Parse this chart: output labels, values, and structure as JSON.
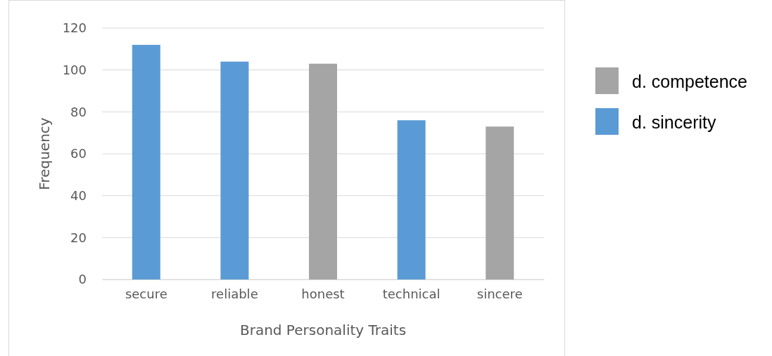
{
  "chart_data": {
    "type": "bar",
    "xlabel": "Brand Personality Traits",
    "ylabel": "Frequency",
    "categories": [
      "secure",
      "reliable",
      "honest",
      "technical",
      "sincere"
    ],
    "series": [
      {
        "name": "d. competence",
        "color": "#a5a5a5",
        "values": [
          null,
          null,
          103,
          null,
          73
        ]
      },
      {
        "name": "d. sincerity",
        "color": "#5b9bd5",
        "values": [
          112,
          104,
          null,
          76,
          null
        ]
      }
    ],
    "ylim": [
      0,
      120
    ],
    "yticks": [
      0,
      20,
      40,
      60,
      80,
      100,
      120
    ],
    "grid": "y",
    "legend": "right"
  }
}
